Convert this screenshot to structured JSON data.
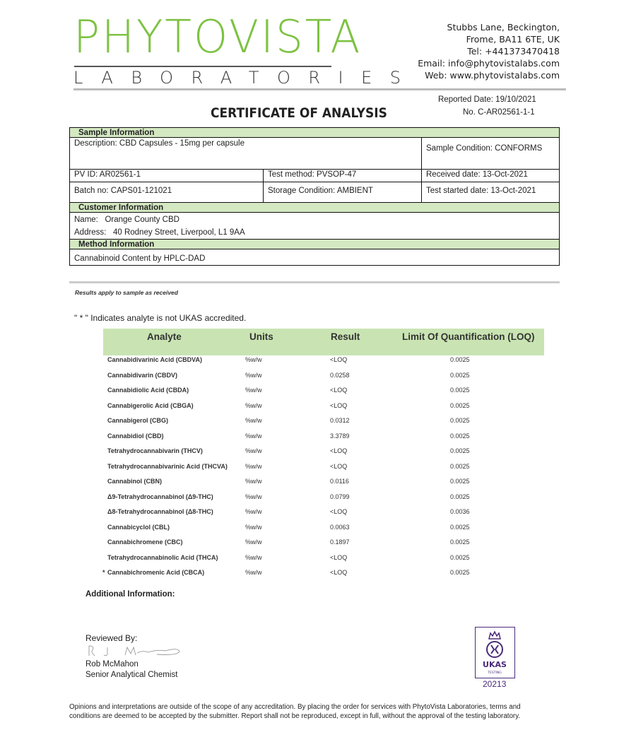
{
  "header": {
    "logo_main": "PHYTOVISTA",
    "logo_sub": "LABORATORIES",
    "address": [
      "Stubbs Lane, Beckington,",
      "Frome, BA11 6TE, UK",
      "Tel: +441373470418",
      "Email: info@phytovistalabs.com",
      "Web: www.phytovistalabs.com"
    ],
    "reported_date": "Reported Date: 19/10/2021",
    "number": "No. C-AR02561-1-1",
    "title": "CERTIFICATE OF ANALYSIS",
    "brand_color": "#7dc242"
  },
  "sample": {
    "heading": "Sample Information",
    "description": "Description: CBD Capsules - 15mg per capsule",
    "condition": "Sample Condition: CONFORMS",
    "pv_id": "PV ID: AR02561-1",
    "test_method": "Test method: PVSOP-47",
    "received": "Received date: 13-Oct-2021",
    "batch": "Batch no: CAPS01-121021",
    "storage": "Storage Condition: AMBIENT",
    "test_started": "Test started date: 13-Oct-2021"
  },
  "customer": {
    "heading": "Customer Information",
    "name": "Name:   Orange County CBD",
    "address": "Address:   40 Rodney Street, Liverpool, L1 9AA"
  },
  "method": {
    "heading": "Method Information",
    "value": "Cannabinoid Content by HPLC-DAD"
  },
  "notes": {
    "results_apply": "Results apply to sample as received",
    "ukas_note": "\" * \" Indicates analyte is not UKAS accredited."
  },
  "results": {
    "headers": [
      "Analyte",
      "Units",
      "Result",
      "Limit Of Quantification (LOQ)"
    ],
    "rows": [
      {
        "mark": "",
        "analyte": "Cannabidivarinic Acid (CBDVA)",
        "units": "%w/w",
        "result": "<LOQ",
        "loq": "0.0025"
      },
      {
        "mark": "",
        "analyte": "Cannabidivarin (CBDV)",
        "units": "%w/w",
        "result": "0.0258",
        "loq": "0.0025"
      },
      {
        "mark": "",
        "analyte": "Cannabidiolic Acid (CBDA)",
        "units": "%w/w",
        "result": "<LOQ",
        "loq": "0.0025"
      },
      {
        "mark": "",
        "analyte": "Cannabigerolic Acid (CBGA)",
        "units": "%w/w",
        "result": "<LOQ",
        "loq": "0.0025"
      },
      {
        "mark": "",
        "analyte": "Cannabigerol (CBG)",
        "units": "%w/w",
        "result": "0.0312",
        "loq": "0.0025"
      },
      {
        "mark": "",
        "analyte": "Cannabidiol (CBD)",
        "units": "%w/w",
        "result": "3.3789",
        "loq": "0.0025"
      },
      {
        "mark": "",
        "analyte": "Tetrahydrocannabivarin (THCV)",
        "units": "%w/w",
        "result": "<LOQ",
        "loq": "0.0025"
      },
      {
        "mark": "",
        "analyte": "Tetrahydrocannabivarinic Acid (THCVA)",
        "units": "%w/w",
        "result": "<LOQ",
        "loq": "0.0025"
      },
      {
        "mark": "",
        "analyte": "Cannabinol (CBN)",
        "units": "%w/w",
        "result": "0.0116",
        "loq": "0.0025"
      },
      {
        "mark": "",
        "analyte": "Δ9-Tetrahydrocannabinol (Δ9-THC)",
        "units": "%w/w",
        "result": "0.0799",
        "loq": "0.0025"
      },
      {
        "mark": "",
        "analyte": "Δ8-Tetrahydrocannabinol (Δ8-THC)",
        "units": "%w/w",
        "result": "<LOQ",
        "loq": "0.0036"
      },
      {
        "mark": "",
        "analyte": "Cannabicyclol (CBL)",
        "units": "%w/w",
        "result": "0.0063",
        "loq": "0.0025"
      },
      {
        "mark": "",
        "analyte": "Cannabichromene (CBC)",
        "units": "%w/w",
        "result": "0.1897",
        "loq": "0.0025"
      },
      {
        "mark": "",
        "analyte": "Tetrahydrocannabinolic Acid (THCA)",
        "units": "%w/w",
        "result": "<LOQ",
        "loq": "0.0025"
      },
      {
        "mark": "*",
        "analyte": "Cannabichromenic Acid (CBCA)",
        "units": "%w/w",
        "result": "<LOQ",
        "loq": "0.0025"
      }
    ]
  },
  "additional": "Additional Information:",
  "review": {
    "label": "Reviewed By:",
    "signature": "R J McMahon",
    "name": "Rob McMahon",
    "title": "Senior Analytical Chemist"
  },
  "ukas": {
    "text": "UKAS",
    "sub": "TESTING",
    "number": "20213",
    "color": "#4a2a7a"
  },
  "footer": "Opinions and interpretations are outside of the scope of any accreditation. By placing the order for services with PhytoVista Laboratories, terms and conditions are deemed to be accepted by the submitter. Report shall not be reproduced, except in full, without the approval of the testing laboratory."
}
